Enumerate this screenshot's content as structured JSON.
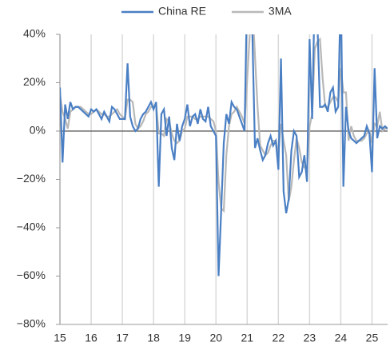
{
  "chart_data": {
    "type": "line",
    "x": [
      15,
      15.083,
      15.167,
      15.25,
      15.333,
      15.417,
      15.5,
      15.583,
      15.667,
      15.75,
      15.833,
      15.917,
      16,
      16.083,
      16.167,
      16.25,
      16.333,
      16.417,
      16.5,
      16.583,
      16.667,
      16.75,
      16.833,
      16.917,
      17,
      17.083,
      17.167,
      17.25,
      17.333,
      17.417,
      17.5,
      17.583,
      17.667,
      17.75,
      17.833,
      17.917,
      18,
      18.083,
      18.167,
      18.25,
      18.333,
      18.417,
      18.5,
      18.583,
      18.667,
      18.75,
      18.833,
      18.917,
      19,
      19.083,
      19.167,
      19.25,
      19.333,
      19.417,
      19.5,
      19.583,
      19.667,
      19.75,
      19.833,
      19.917,
      20,
      20.083,
      20.167,
      20.25,
      20.333,
      20.417,
      20.5,
      20.583,
      20.667,
      20.75,
      20.833,
      20.917,
      21,
      21.083,
      21.167,
      21.25,
      21.333,
      21.417,
      21.5,
      21.583,
      21.667,
      21.75,
      21.833,
      21.917,
      22,
      22.083,
      22.167,
      22.25,
      22.333,
      22.417,
      22.5,
      22.583,
      22.667,
      22.75,
      22.833,
      22.917,
      23,
      23.083,
      23.167,
      23.25,
      23.333,
      23.417,
      23.5,
      23.583,
      23.667,
      23.75,
      23.833,
      23.917,
      24,
      24.083,
      24.167,
      24.25,
      24.333,
      24.417,
      24.5,
      24.583,
      24.667,
      24.75,
      24.833,
      24.917,
      25,
      25.083,
      25.167,
      25.25,
      25.333,
      25.417,
      25.5
    ],
    "series": [
      {
        "name": "China RE",
        "color": "#4a7fc4",
        "values": [
          18,
          -13,
          11,
          5,
          12,
          9,
          10,
          10,
          9,
          8,
          7,
          6,
          9,
          8,
          9,
          7,
          5,
          8,
          6,
          4,
          10,
          9,
          7,
          5,
          5,
          5,
          28,
          6,
          2,
          0,
          1,
          5,
          7,
          8,
          10,
          12,
          9,
          12,
          -23,
          7,
          9,
          -2,
          6,
          -7,
          -12,
          3,
          -4,
          2,
          5,
          11,
          2,
          6,
          7,
          3,
          9,
          5,
          4,
          10,
          2,
          0,
          -2,
          -60,
          -33,
          -5,
          7,
          3,
          12,
          10,
          9,
          6,
          3,
          0,
          60,
          60,
          40,
          -7,
          -3,
          -8,
          -12,
          -10,
          -5,
          -2,
          -6,
          -4,
          -16,
          30,
          -25,
          -34,
          -28,
          -8,
          0,
          -2,
          -19,
          -17,
          -10,
          -21,
          38,
          5,
          60,
          45,
          10,
          10,
          11,
          8,
          16,
          18,
          8,
          10,
          60,
          -23,
          10,
          0,
          -3,
          -4,
          -5,
          -4,
          -3,
          -2,
          2,
          -1,
          -17,
          26,
          -3,
          2,
          1,
          2,
          1
        ]
      },
      {
        "name": "3MA",
        "color": "#b8b8b8",
        "values": [
          15,
          8,
          5,
          1,
          8,
          9,
          10,
          10,
          10,
          9,
          8,
          7,
          7,
          8,
          9,
          8,
          7,
          7,
          6,
          6,
          7,
          8,
          9,
          7,
          6,
          5,
          13,
          13,
          12,
          3,
          1,
          2,
          4,
          7,
          8,
          10,
          10,
          11,
          -1,
          -1,
          -2,
          5,
          4,
          -1,
          -4,
          -5,
          -4,
          0,
          1,
          6,
          6,
          6,
          5,
          5,
          6,
          6,
          6,
          6,
          5,
          4,
          0,
          -21,
          -32,
          -33,
          -10,
          2,
          7,
          8,
          10,
          8,
          6,
          3,
          21,
          40,
          53,
          31,
          10,
          -6,
          -8,
          -10,
          -9,
          -6,
          -4,
          -4,
          -9,
          3,
          -4,
          -10,
          -29,
          -23,
          -12,
          -3,
          -7,
          -13,
          -15,
          -16,
          2,
          7,
          34,
          37,
          38,
          22,
          10,
          10,
          12,
          14,
          14,
          12,
          26,
          16,
          16,
          -4,
          2,
          -2,
          -4,
          -4,
          -4,
          -3,
          -1,
          0,
          -5,
          3,
          2,
          8,
          0,
          1,
          1
        ]
      }
    ],
    "xlim": [
      15,
      25.5
    ],
    "xticks": [
      15,
      16,
      17,
      18,
      19,
      20,
      21,
      22,
      23,
      24,
      25
    ],
    "ylim": [
      -80,
      40
    ],
    "yticks": [
      {
        "value": -80,
        "label": "−80%"
      },
      {
        "value": -60,
        "label": "−60%"
      },
      {
        "value": -40,
        "label": "−40%"
      },
      {
        "value": -20,
        "label": "−20%"
      },
      {
        "value": 0,
        "label": "0%"
      },
      {
        "value": 20,
        "label": "20%"
      },
      {
        "value": 40,
        "label": "40%"
      }
    ],
    "grid": true
  }
}
